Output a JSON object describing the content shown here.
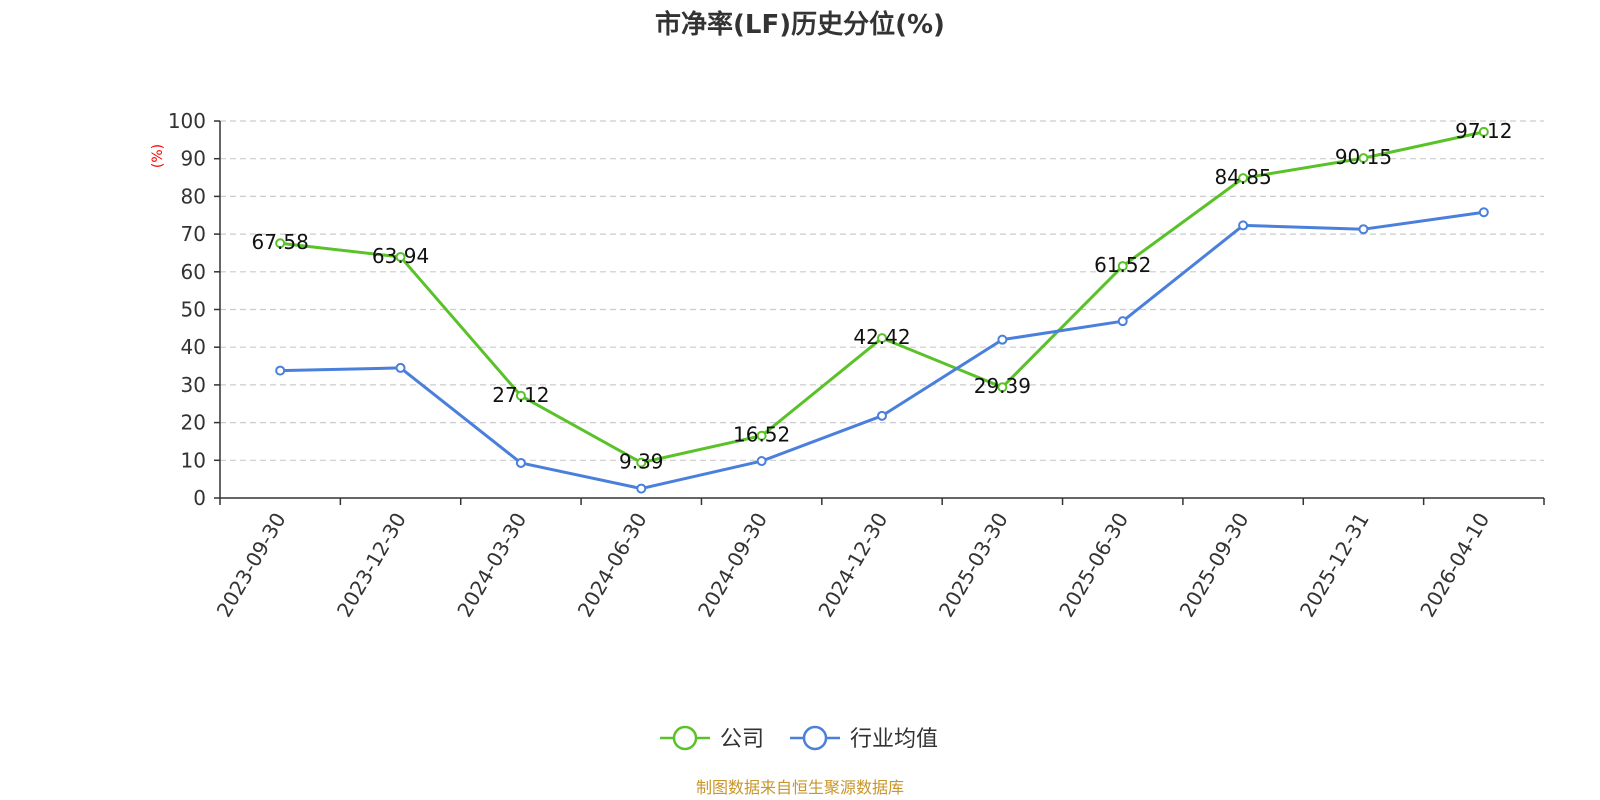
{
  "chart_data": {
    "type": "line",
    "title": "市净率(LF)历史分位(%)",
    "unit_label": "(%)",
    "categories": [
      "2023-09-30",
      "2023-12-30",
      "2024-03-30",
      "2024-06-30",
      "2024-09-30",
      "2024-12-30",
      "2025-03-30",
      "2025-06-30",
      "2025-09-30",
      "2025-12-31",
      "2026-04-10"
    ],
    "y_ticks": [
      "0",
      "10",
      "20",
      "30",
      "40",
      "50",
      "60",
      "70",
      "80",
      "90",
      "100"
    ],
    "ylim": [
      0,
      100
    ],
    "grid": true,
    "legend_position": "bottom-center",
    "series": [
      {
        "name": "公司",
        "color": "#5ac229",
        "values": [
          67.58,
          63.94,
          27.12,
          9.39,
          16.52,
          42.42,
          29.39,
          61.52,
          84.85,
          90.15,
          97.12
        ],
        "labels": [
          "67.58",
          "63.94",
          "27.12",
          "9.39",
          "16.52",
          "42.42",
          "29.39",
          "61.52",
          "84.85",
          "90.15",
          "97.12"
        ],
        "show_labels": true
      },
      {
        "name": "行业均值",
        "color": "#4a7fdc",
        "values": [
          33.8,
          34.5,
          9.3,
          2.5,
          9.8,
          21.8,
          42.0,
          46.9,
          72.3,
          71.3,
          75.8
        ],
        "show_labels": false
      }
    ],
    "source": "制图数据来自恒生聚源数据库"
  }
}
